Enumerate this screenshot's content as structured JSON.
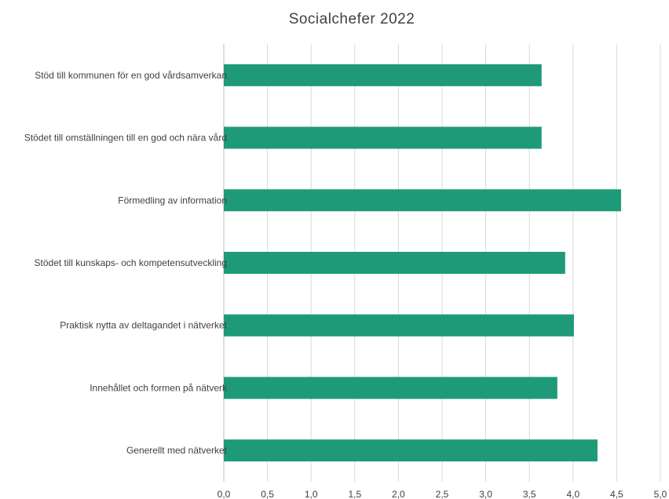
{
  "chart_data": {
    "type": "bar",
    "orientation": "horizontal",
    "title": "Socialchefer 2022",
    "categories": [
      "Stöd till kommunen för en god vårdsamverkan",
      "Stödet till omställningen till en god och nära vård",
      "Förmedling av information",
      "Stödet till kunskaps- och kompetensutveckling",
      "Praktisk nytta av deltagandet i nätverket",
      "Innehållet och formen på nätverk",
      "Generellt med nätverket"
    ],
    "values": [
      3.64,
      3.64,
      4.55,
      3.91,
      4.01,
      3.82,
      4.28
    ],
    "xlim": [
      0,
      5
    ],
    "x_ticks": [
      "0,0",
      "0,5",
      "1,0",
      "1,5",
      "2,0",
      "2,5",
      "3,0",
      "3,5",
      "4,0",
      "4,5",
      "5,0"
    ],
    "grid": true,
    "bar_color": "#1f9a78"
  }
}
